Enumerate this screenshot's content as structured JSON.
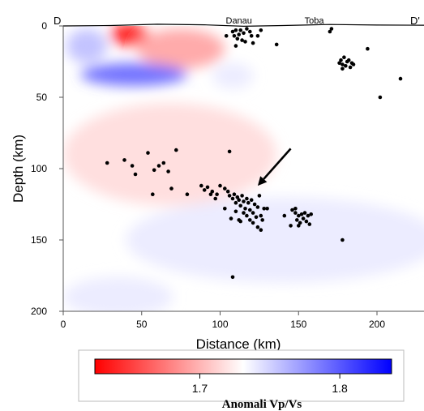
{
  "chart_data": {
    "type": "scatter",
    "title": "",
    "xlabel": "Distance (km)",
    "ylabel": "Depth (km)",
    "xlim": [
      0,
      230
    ],
    "ylim": [
      200,
      0
    ],
    "y_inverted": true,
    "x_ticks": [
      "0",
      "50",
      "100",
      "150",
      "200"
    ],
    "y_ticks": [
      "0",
      "50",
      "100",
      "150",
      "200"
    ],
    "profile_start_label": "D",
    "profile_end_label": "D'",
    "places": [
      {
        "name": "Danau",
        "x": 112
      },
      {
        "name": "Toba",
        "x": 160
      }
    ],
    "anomaly_background": [
      {
        "x": 42,
        "y": 6,
        "rx": 12,
        "ry": 8,
        "value": 1.62
      },
      {
        "x": 75,
        "y": 16,
        "rx": 28,
        "ry": 14,
        "value": 1.69
      },
      {
        "x": 15,
        "y": 14,
        "rx": 13,
        "ry": 12,
        "value": 1.76
      },
      {
        "x": 45,
        "y": 34,
        "rx": 34,
        "ry": 8,
        "value": 1.8
      },
      {
        "x": 108,
        "y": 35,
        "rx": 13,
        "ry": 9,
        "value": 1.74
      },
      {
        "x": 68,
        "y": 90,
        "rx": 68,
        "ry": 36,
        "value": 1.715
      },
      {
        "x": 140,
        "y": 150,
        "rx": 100,
        "ry": 30,
        "value": 1.74
      },
      {
        "x": 35,
        "y": 190,
        "rx": 35,
        "ry": 14,
        "value": 1.74
      }
    ],
    "surface_profile": [
      [
        0,
        0
      ],
      [
        30,
        -0.3
      ],
      [
        60,
        -1.2
      ],
      [
        90,
        -0.8
      ],
      [
        115,
        0.2
      ],
      [
        140,
        -0.3
      ],
      [
        170,
        -1.0
      ],
      [
        200,
        -0.6
      ],
      [
        230,
        -0.5
      ]
    ],
    "annotation_arrow": {
      "from": [
        145,
        86
      ],
      "to": [
        124,
        112
      ]
    },
    "earthquakes": [
      [
        108,
        4
      ],
      [
        110,
        3
      ],
      [
        112,
        6
      ],
      [
        113,
        3
      ],
      [
        115,
        5
      ],
      [
        117,
        2
      ],
      [
        119,
        4
      ],
      [
        120,
        7
      ],
      [
        111,
        9
      ],
      [
        114,
        10
      ],
      [
        116,
        11
      ],
      [
        121,
        12
      ],
      [
        109,
        7
      ],
      [
        104,
        7
      ],
      [
        124,
        7
      ],
      [
        126,
        3
      ],
      [
        110,
        14
      ],
      [
        136,
        13
      ],
      [
        170,
        4
      ],
      [
        171,
        2
      ],
      [
        176,
        26
      ],
      [
        177,
        24
      ],
      [
        178,
        27
      ],
      [
        179,
        22
      ],
      [
        180,
        28
      ],
      [
        181,
        25
      ],
      [
        182,
        24
      ],
      [
        183,
        29
      ],
      [
        184,
        26
      ],
      [
        185,
        27
      ],
      [
        178,
        30
      ],
      [
        194,
        16
      ],
      [
        215,
        37
      ],
      [
        202,
        50
      ],
      [
        28,
        96
      ],
      [
        39,
        94
      ],
      [
        44,
        98
      ],
      [
        46,
        104
      ],
      [
        54,
        89
      ],
      [
        58,
        101
      ],
      [
        61,
        98
      ],
      [
        64,
        96
      ],
      [
        67,
        102
      ],
      [
        72,
        87
      ],
      [
        57,
        118
      ],
      [
        79,
        118
      ],
      [
        69,
        114
      ],
      [
        106,
        88
      ],
      [
        88,
        112
      ],
      [
        90,
        115
      ],
      [
        92,
        113
      ],
      [
        95,
        116
      ],
      [
        98,
        118
      ],
      [
        100,
        112
      ],
      [
        103,
        114
      ],
      [
        105,
        116
      ],
      [
        106,
        119
      ],
      [
        108,
        121
      ],
      [
        109,
        118
      ],
      [
        110,
        124
      ],
      [
        111,
        120
      ],
      [
        112,
        122
      ],
      [
        113,
        126
      ],
      [
        114,
        119
      ],
      [
        115,
        123
      ],
      [
        116,
        128
      ],
      [
        117,
        121
      ],
      [
        118,
        124
      ],
      [
        119,
        129
      ],
      [
        120,
        122
      ],
      [
        121,
        131
      ],
      [
        122,
        125
      ],
      [
        123,
        134
      ],
      [
        124,
        127
      ],
      [
        125,
        119
      ],
      [
        126,
        133
      ],
      [
        127,
        136
      ],
      [
        128,
        128
      ],
      [
        115,
        131
      ],
      [
        117,
        133
      ],
      [
        119,
        136
      ],
      [
        113,
        137
      ],
      [
        121,
        138
      ],
      [
        124,
        141
      ],
      [
        126,
        143
      ],
      [
        130,
        128
      ],
      [
        110,
        130
      ],
      [
        112,
        136
      ],
      [
        107,
        135
      ],
      [
        103,
        128
      ],
      [
        97,
        121
      ],
      [
        94,
        118
      ],
      [
        146,
        129
      ],
      [
        148,
        131
      ],
      [
        149,
        136
      ],
      [
        150,
        133
      ],
      [
        151,
        138
      ],
      [
        152,
        132
      ],
      [
        153,
        135
      ],
      [
        154,
        131
      ],
      [
        155,
        137
      ],
      [
        156,
        133
      ],
      [
        157,
        139
      ],
      [
        158,
        132
      ],
      [
        145,
        140
      ],
      [
        150,
        140
      ],
      [
        141,
        133
      ],
      [
        148,
        128
      ],
      [
        178,
        150
      ],
      [
        108,
        176
      ]
    ],
    "colorbar": {
      "title": "Anomali Vp/Vs",
      "ticks": [
        "1.7",
        "1.8"
      ],
      "min": 1.625,
      "max": 1.837,
      "colors": [
        "#ff0000",
        "#ffffff",
        "#0000ff"
      ]
    }
  }
}
